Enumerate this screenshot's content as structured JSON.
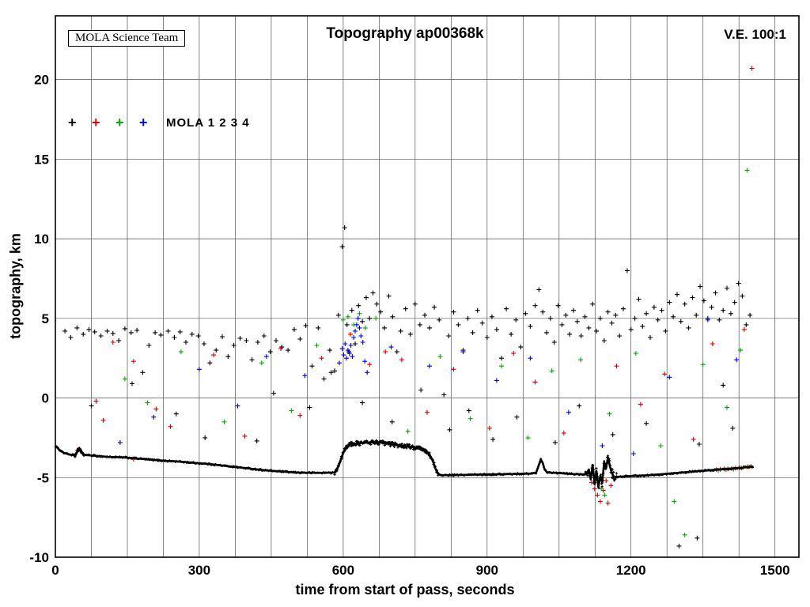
{
  "chart_data": {
    "type": "scatter",
    "title": "Topography ap00368k",
    "xlabel": "time from start of pass, seconds",
    "ylabel": "topography, km",
    "xlim": [
      0,
      1550
    ],
    "ylim": [
      -10,
      24
    ],
    "xticks": [
      0,
      300,
      600,
      900,
      1200,
      1500
    ],
    "xgrid_step": 75,
    "yticks": [
      -10,
      -5,
      0,
      5,
      10,
      15,
      20
    ],
    "grid": true,
    "annotations": {
      "credit": "MOLA Science Team",
      "ve": "V.E. 100:1"
    },
    "legend": {
      "marker": "+",
      "label": "MOLA 1 2 3 4",
      "colors": [
        "#000000",
        "#dd0000",
        "#00aa00",
        "#0000dd"
      ]
    },
    "series_names": [
      "MOLA 1",
      "MOLA 2",
      "MOLA 3",
      "MOLA 4"
    ],
    "ground_track": [
      [
        0,
        -3.0
      ],
      [
        8,
        -3.25
      ],
      [
        18,
        -3.45
      ],
      [
        30,
        -3.55
      ],
      [
        42,
        -3.6
      ],
      [
        46,
        -3.35
      ],
      [
        50,
        -3.15
      ],
      [
        54,
        -3.35
      ],
      [
        58,
        -3.55
      ],
      [
        70,
        -3.6
      ],
      [
        90,
        -3.65
      ],
      [
        110,
        -3.7
      ],
      [
        130,
        -3.72
      ],
      [
        150,
        -3.75
      ],
      [
        170,
        -3.8
      ],
      [
        200,
        -3.88
      ],
      [
        230,
        -3.95
      ],
      [
        260,
        -4.0
      ],
      [
        290,
        -4.08
      ],
      [
        320,
        -4.15
      ],
      [
        350,
        -4.25
      ],
      [
        380,
        -4.35
      ],
      [
        410,
        -4.45
      ],
      [
        440,
        -4.55
      ],
      [
        470,
        -4.62
      ],
      [
        500,
        -4.68
      ],
      [
        530,
        -4.7
      ],
      [
        560,
        -4.7
      ],
      [
        582,
        -4.68
      ],
      [
        590,
        -4.3
      ],
      [
        596,
        -3.8
      ],
      [
        602,
        -3.3
      ],
      [
        608,
        -3.0
      ],
      [
        615,
        -2.9
      ],
      [
        630,
        -2.85
      ],
      [
        650,
        -2.8
      ],
      [
        670,
        -2.78
      ],
      [
        690,
        -2.85
      ],
      [
        710,
        -2.95
      ],
      [
        725,
        -3.0
      ],
      [
        740,
        -3.05
      ],
      [
        752,
        -3.15
      ],
      [
        762,
        -3.2
      ],
      [
        772,
        -3.35
      ],
      [
        780,
        -3.55
      ],
      [
        786,
        -3.9
      ],
      [
        792,
        -4.4
      ],
      [
        797,
        -4.75
      ],
      [
        802,
        -4.85
      ],
      [
        830,
        -4.85
      ],
      [
        870,
        -4.82
      ],
      [
        910,
        -4.8
      ],
      [
        950,
        -4.78
      ],
      [
        990,
        -4.75
      ],
      [
        1002,
        -4.7
      ],
      [
        1008,
        -4.2
      ],
      [
        1012,
        -3.85
      ],
      [
        1016,
        -4.1
      ],
      [
        1020,
        -4.5
      ],
      [
        1026,
        -4.68
      ],
      [
        1050,
        -4.72
      ],
      [
        1080,
        -4.78
      ],
      [
        1105,
        -4.8
      ],
      [
        1112,
        -4.5
      ],
      [
        1116,
        -5.1
      ],
      [
        1120,
        -4.2
      ],
      [
        1124,
        -5.4
      ],
      [
        1128,
        -4.6
      ],
      [
        1132,
        -5.6
      ],
      [
        1136,
        -4.9
      ],
      [
        1140,
        -5.3
      ],
      [
        1144,
        -4.0
      ],
      [
        1148,
        -4.4
      ],
      [
        1152,
        -3.75
      ],
      [
        1156,
        -4.3
      ],
      [
        1160,
        -4.7
      ],
      [
        1164,
        -4.95
      ],
      [
        1170,
        -4.95
      ],
      [
        1200,
        -4.9
      ],
      [
        1240,
        -4.85
      ],
      [
        1280,
        -4.75
      ],
      [
        1320,
        -4.65
      ],
      [
        1360,
        -4.55
      ],
      [
        1400,
        -4.45
      ],
      [
        1430,
        -4.38
      ],
      [
        1455,
        -4.3
      ]
    ],
    "noisy_segments": [
      [
        40,
        60,
        0.1
      ],
      [
        582,
        800,
        0.14
      ],
      [
        1105,
        1170,
        0.3
      ]
    ],
    "scatter": {
      "black": [
        [
          20,
          4.2
        ],
        [
          32,
          3.8
        ],
        [
          45,
          4.4
        ],
        [
          58,
          4.0
        ],
        [
          70,
          4.3
        ],
        [
          82,
          4.15
        ],
        [
          95,
          3.9
        ],
        [
          108,
          4.2
        ],
        [
          120,
          4.05
        ],
        [
          132,
          3.6
        ],
        [
          145,
          4.35
        ],
        [
          158,
          4.1
        ],
        [
          170,
          4.25
        ],
        [
          182,
          1.6
        ],
        [
          195,
          3.3
        ],
        [
          208,
          4.1
        ],
        [
          220,
          3.95
        ],
        [
          235,
          4.2
        ],
        [
          248,
          3.8
        ],
        [
          260,
          4.15
        ],
        [
          272,
          3.5
        ],
        [
          285,
          4.0
        ],
        [
          298,
          3.9
        ],
        [
          310,
          3.4
        ],
        [
          322,
          2.2
        ],
        [
          335,
          3.0
        ],
        [
          348,
          3.85
        ],
        [
          360,
          2.6
        ],
        [
          372,
          3.3
        ],
        [
          385,
          3.75
        ],
        [
          398,
          3.6
        ],
        [
          410,
          2.4
        ],
        [
          422,
          3.5
        ],
        [
          435,
          3.9
        ],
        [
          448,
          2.9
        ],
        [
          460,
          3.6
        ],
        [
          472,
          3.2
        ],
        [
          485,
          3.0
        ],
        [
          498,
          4.3
        ],
        [
          510,
          3.7
        ],
        [
          522,
          4.55
        ],
        [
          535,
          2.0
        ],
        [
          548,
          4.4
        ],
        [
          560,
          1.2
        ],
        [
          572,
          3.0
        ],
        [
          582,
          1.7
        ],
        [
          590,
          5.2
        ],
        [
          598,
          9.5
        ],
        [
          603,
          10.7
        ],
        [
          608,
          4.6
        ],
        [
          612,
          2.9
        ],
        [
          618,
          5.5
        ],
        [
          625,
          3.4
        ],
        [
          632,
          5.8
        ],
        [
          640,
          4.8
        ],
        [
          648,
          6.3
        ],
        [
          655,
          5.0
        ],
        [
          662,
          6.6
        ],
        [
          670,
          5.9
        ],
        [
          678,
          5.4
        ],
        [
          686,
          4.4
        ],
        [
          695,
          6.4
        ],
        [
          703,
          5.1
        ],
        [
          712,
          2.9
        ],
        [
          720,
          4.2
        ],
        [
          730,
          5.6
        ],
        [
          740,
          4.0
        ],
        [
          750,
          5.9
        ],
        [
          760,
          4.6
        ],
        [
          770,
          5.2
        ],
        [
          780,
          4.4
        ],
        [
          790,
          5.7
        ],
        [
          800,
          4.9
        ],
        [
          810,
          0.2
        ],
        [
          820,
          3.9
        ],
        [
          830,
          5.4
        ],
        [
          840,
          4.6
        ],
        [
          850,
          3.0
        ],
        [
          860,
          5.0
        ],
        [
          870,
          4.1
        ],
        [
          880,
          5.5
        ],
        [
          890,
          4.7
        ],
        [
          900,
          3.8
        ],
        [
          910,
          5.1
        ],
        [
          920,
          4.3
        ],
        [
          930,
          2.5
        ],
        [
          940,
          5.6
        ],
        [
          950,
          4.0
        ],
        [
          960,
          4.9
        ],
        [
          970,
          3.2
        ],
        [
          980,
          5.3
        ],
        [
          990,
          4.5
        ],
        [
          1000,
          5.8
        ],
        [
          1008,
          6.8
        ],
        [
          1016,
          5.4
        ],
        [
          1024,
          4.1
        ],
        [
          1032,
          5.0
        ],
        [
          1040,
          3.5
        ],
        [
          1048,
          5.8
        ],
        [
          1056,
          4.6
        ],
        [
          1064,
          5.2
        ],
        [
          1072,
          4.0
        ],
        [
          1080,
          5.5
        ],
        [
          1088,
          4.8
        ],
        [
          1096,
          3.9
        ],
        [
          1104,
          5.1
        ],
        [
          1112,
          4.4
        ],
        [
          1120,
          5.9
        ],
        [
          1128,
          4.2
        ],
        [
          1136,
          5.0
        ],
        [
          1144,
          3.6
        ],
        [
          1152,
          5.4
        ],
        [
          1160,
          4.7
        ],
        [
          1168,
          5.2
        ],
        [
          1176,
          3.9
        ],
        [
          1184,
          5.6
        ],
        [
          1192,
          8.0
        ],
        [
          1200,
          4.3
        ],
        [
          1208,
          5.0
        ],
        [
          1216,
          6.2
        ],
        [
          1224,
          4.5
        ],
        [
          1232,
          5.3
        ],
        [
          1240,
          3.8
        ],
        [
          1248,
          5.7
        ],
        [
          1256,
          4.9
        ],
        [
          1264,
          5.5
        ],
        [
          1272,
          4.2
        ],
        [
          1280,
          6.0
        ],
        [
          1288,
          5.1
        ],
        [
          1296,
          6.5
        ],
        [
          1304,
          4.8
        ],
        [
          1312,
          5.9
        ],
        [
          1320,
          4.4
        ],
        [
          1328,
          6.3
        ],
        [
          1336,
          5.2
        ],
        [
          1344,
          7.0
        ],
        [
          1352,
          6.1
        ],
        [
          1360,
          5.0
        ],
        [
          1368,
          5.7
        ],
        [
          1376,
          6.6
        ],
        [
          1384,
          4.9
        ],
        [
          1392,
          5.5
        ],
        [
          1400,
          6.9
        ],
        [
          1408,
          5.3
        ],
        [
          1416,
          6.0
        ],
        [
          1424,
          7.2
        ],
        [
          1432,
          6.4
        ],
        [
          1440,
          4.6
        ],
        [
          1448,
          5.2
        ],
        [
          75,
          -0.5
        ],
        [
          160,
          0.9
        ],
        [
          252,
          -1.0
        ],
        [
          312,
          -2.5
        ],
        [
          420,
          -2.7
        ],
        [
          455,
          0.3
        ],
        [
          530,
          -0.6
        ],
        [
          575,
          1.6
        ],
        [
          640,
          -0.3
        ],
        [
          702,
          -1.5
        ],
        [
          762,
          0.5
        ],
        [
          822,
          -2.0
        ],
        [
          862,
          -0.8
        ],
        [
          912,
          -2.6
        ],
        [
          962,
          -1.2
        ],
        [
          1042,
          -2.8
        ],
        [
          1092,
          -0.5
        ],
        [
          1162,
          -2.3
        ],
        [
          1232,
          -1.6
        ],
        [
          1342,
          -2.9
        ],
        [
          1392,
          0.8
        ],
        [
          1300,
          -9.3
        ],
        [
          1338,
          -8.8
        ],
        [
          1412,
          -1.9
        ]
      ],
      "red": [
        [
          85,
          -0.2
        ],
        [
          100,
          -1.4
        ],
        [
          120,
          3.5
        ],
        [
          163,
          2.3
        ],
        [
          210,
          -0.7
        ],
        [
          240,
          -1.8
        ],
        [
          330,
          2.7
        ],
        [
          395,
          -2.4
        ],
        [
          470,
          3.1
        ],
        [
          510,
          -1.1
        ],
        [
          555,
          2.5
        ],
        [
          615,
          4.0
        ],
        [
          655,
          2.1
        ],
        [
          688,
          2.9
        ],
        [
          722,
          2.4
        ],
        [
          775,
          -0.9
        ],
        [
          830,
          1.8
        ],
        [
          905,
          -1.9
        ],
        [
          955,
          2.8
        ],
        [
          1000,
          1.0
        ],
        [
          1060,
          -2.2
        ],
        [
          1118,
          -5.3
        ],
        [
          1124,
          -5.7
        ],
        [
          1130,
          -6.1
        ],
        [
          1136,
          -6.5
        ],
        [
          1142,
          -5.8
        ],
        [
          1148,
          -5.2
        ],
        [
          1152,
          -6.6
        ],
        [
          1158,
          -5.5
        ],
        [
          1170,
          2.0
        ],
        [
          1220,
          -0.4
        ],
        [
          1270,
          1.5
        ],
        [
          1330,
          -2.6
        ],
        [
          1370,
          3.4
        ],
        [
          46,
          -3.3
        ],
        [
          50,
          -3.2
        ],
        [
          163,
          -3.85
        ],
        [
          1378,
          -4.5
        ],
        [
          1386,
          -4.48
        ],
        [
          1394,
          -4.45
        ],
        [
          1402,
          -4.45
        ],
        [
          1410,
          -4.42
        ],
        [
          1418,
          -4.4
        ],
        [
          1426,
          -4.38
        ],
        [
          1434,
          -4.35
        ],
        [
          1442,
          -4.32
        ],
        [
          1450,
          -4.3
        ],
        [
          1436,
          4.3
        ],
        [
          1452,
          20.7
        ]
      ],
      "green": [
        [
          145,
          1.2
        ],
        [
          192,
          -0.3
        ],
        [
          262,
          2.9
        ],
        [
          352,
          -1.5
        ],
        [
          430,
          2.2
        ],
        [
          492,
          -0.8
        ],
        [
          545,
          3.3
        ],
        [
          600,
          4.9
        ],
        [
          610,
          5.1
        ],
        [
          622,
          4.6
        ],
        [
          634,
          5.3
        ],
        [
          646,
          4.4
        ],
        [
          668,
          5.0
        ],
        [
          735,
          -2.1
        ],
        [
          802,
          2.6
        ],
        [
          865,
          -1.3
        ],
        [
          930,
          2.0
        ],
        [
          985,
          -2.5
        ],
        [
          1035,
          1.7
        ],
        [
          1095,
          2.4
        ],
        [
          1125,
          -5.2
        ],
        [
          1138,
          -5.7
        ],
        [
          1145,
          -6.1
        ],
        [
          1155,
          -1.0
        ],
        [
          1210,
          2.8
        ],
        [
          1262,
          -3.0
        ],
        [
          1290,
          -6.5
        ],
        [
          1312,
          -8.6
        ],
        [
          1350,
          2.1
        ],
        [
          1400,
          -0.6
        ],
        [
          1382,
          -4.55
        ],
        [
          1398,
          -4.5
        ],
        [
          1414,
          -4.47
        ],
        [
          1430,
          -4.4
        ],
        [
          1446,
          -4.33
        ],
        [
          1428,
          3.0
        ],
        [
          1442,
          14.3
        ]
      ],
      "blue": [
        [
          135,
          -2.8
        ],
        [
          205,
          -1.2
        ],
        [
          300,
          1.8
        ],
        [
          380,
          -0.5
        ],
        [
          440,
          2.6
        ],
        [
          520,
          1.4
        ],
        [
          592,
          2.2
        ],
        [
          598,
          3.1
        ],
        [
          601,
          2.7
        ],
        [
          604,
          3.4
        ],
        [
          607,
          2.5
        ],
        [
          610,
          3.0
        ],
        [
          613,
          2.8
        ],
        [
          616,
          3.3
        ],
        [
          619,
          2.6
        ],
        [
          622,
          3.8
        ],
        [
          625,
          4.2
        ],
        [
          628,
          4.6
        ],
        [
          631,
          5.0
        ],
        [
          634,
          4.4
        ],
        [
          637,
          3.9
        ],
        [
          641,
          3.5
        ],
        [
          645,
          2.3
        ],
        [
          650,
          1.6
        ],
        [
          700,
          3.2
        ],
        [
          780,
          2.0
        ],
        [
          850,
          2.9
        ],
        [
          920,
          1.1
        ],
        [
          990,
          2.5
        ],
        [
          1070,
          -0.9
        ],
        [
          1140,
          -3.0
        ],
        [
          1205,
          -3.5
        ],
        [
          1280,
          1.3
        ],
        [
          1360,
          4.9
        ],
        [
          1420,
          2.4
        ]
      ]
    }
  }
}
